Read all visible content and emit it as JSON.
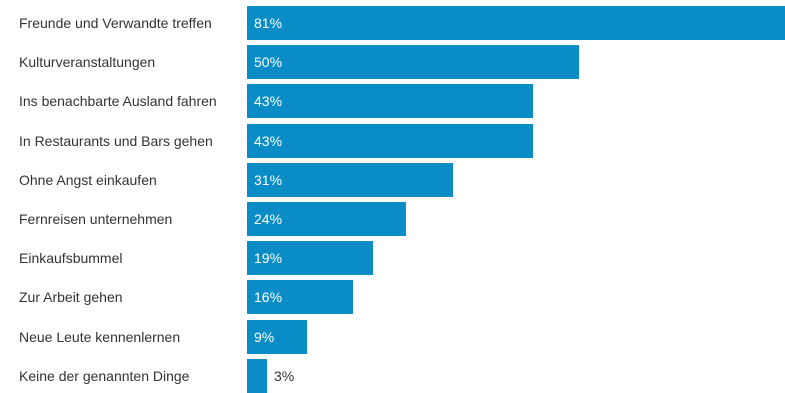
{
  "chart_data": {
    "type": "bar",
    "orientation": "horizontal",
    "categories": [
      "Freunde und Verwandte treffen",
      "Kulturveranstaltungen",
      "Ins benachbarte Ausland fahren",
      "In Restaurants und Bars gehen",
      "Ohne Angst einkaufen",
      "Fernreisen unternehmen",
      "Einkaufsbummel",
      "Zur Arbeit gehen",
      "Neue Leute kennenlernen",
      "Keine der genannten Dinge"
    ],
    "values": [
      81,
      50,
      43,
      43,
      31,
      24,
      19,
      16,
      9,
      3
    ],
    "value_labels": [
      "81%",
      "50%",
      "43%",
      "43%",
      "31%",
      "24%",
      "19%",
      "16%",
      "9%",
      "3%"
    ],
    "unit": "%",
    "bar_color": "#0a8dc6",
    "grid": false,
    "legend": "none"
  }
}
